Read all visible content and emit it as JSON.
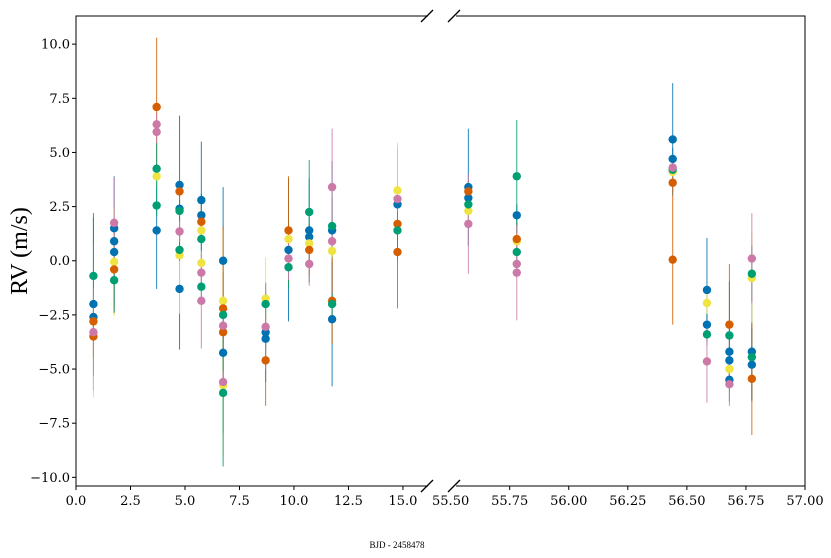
{
  "chart_data": {
    "type": "scatter",
    "title": "",
    "xlabel": "BJD - 2458478",
    "ylabel": "RV (m/s)",
    "broken_x_axis": true,
    "grid": false,
    "legend": "none",
    "panels": [
      {
        "xlim": [
          0.0,
          16.7
        ],
        "xticks": [
          0.0,
          2.5,
          5.0,
          7.5,
          10.0,
          12.5,
          15.0
        ],
        "xtick_labels": [
          "0.0",
          "2.5",
          "5.0",
          "7.5",
          "10.0",
          "12.5",
          "15.0"
        ]
      },
      {
        "xlim": [
          55.455,
          57.0
        ],
        "xticks": [
          55.5,
          55.75,
          56.0,
          56.25,
          56.5,
          56.75,
          57.0
        ],
        "xtick_labels": [
          "55.50",
          "55.75",
          "56.00",
          "56.25",
          "56.50",
          "56.75",
          "57.00"
        ]
      }
    ],
    "ylim": [
      -10.4,
      11.3
    ],
    "yticks": [
      -10.0,
      -7.5,
      -5.0,
      -2.5,
      0.0,
      2.5,
      5.0,
      7.5,
      10.0
    ],
    "ytick_labels": [
      "−10.0",
      "−7.5",
      "−5.0",
      "−2.5",
      "0.0",
      "2.5",
      "5.0",
      "7.5",
      "10.0"
    ],
    "colors": {
      "orange": "#d55e00",
      "blue": "#0072b2",
      "green": "#009e73",
      "pink": "#cc79a7",
      "yellow": "#f0e442"
    },
    "series": [
      {
        "color": "blue",
        "x": [
          0.8,
          0.8,
          1.75,
          1.75,
          1.75,
          3.7,
          4.75,
          4.75,
          4.75,
          5.75,
          5.75,
          6.75,
          6.75,
          8.7,
          8.7,
          9.75,
          10.7,
          10.7,
          11.75,
          11.75,
          14.75,
          55.575,
          55.575,
          55.78,
          56.44,
          56.44,
          56.585,
          56.585,
          56.68,
          56.68,
          56.68,
          56.775,
          56.775
        ],
        "y": [
          -2.0,
          -2.6,
          0.9,
          0.4,
          1.5,
          1.4,
          3.5,
          2.4,
          -1.3,
          2.8,
          2.1,
          0.0,
          -4.25,
          -3.3,
          -3.6,
          0.5,
          1.4,
          1.1,
          1.4,
          -2.7,
          2.6,
          3.4,
          2.9,
          2.1,
          5.6,
          4.7,
          -1.35,
          -2.95,
          -4.2,
          -4.6,
          -5.5,
          -4.2,
          -4.8
        ],
        "yerr": [
          4.0,
          0.5,
          3.0,
          0.5,
          0.5,
          2.7,
          3.2,
          1.0,
          2.8,
          2.7,
          1.0,
          3.4,
          3.7,
          2.3,
          0.5,
          3.3,
          2.4,
          0.5,
          3.2,
          3.1,
          2.6,
          2.7,
          0.5,
          0.5,
          2.6,
          0.5,
          2.4,
          0.5,
          1.2,
          0.5,
          1.0,
          2.2,
          1.7
        ]
      },
      {
        "color": "orange",
        "x": [
          0.8,
          0.8,
          1.75,
          3.7,
          4.75,
          5.75,
          6.75,
          6.75,
          8.7,
          9.75,
          10.7,
          11.75,
          14.75,
          14.75,
          55.575,
          55.78,
          56.44,
          56.44,
          56.68,
          56.775
        ],
        "y": [
          -3.5,
          -2.8,
          -0.4,
          7.1,
          3.2,
          1.8,
          -2.2,
          -3.3,
          -4.6,
          1.4,
          0.5,
          -1.85,
          0.4,
          1.7,
          3.2,
          1.0,
          0.05,
          3.6,
          -2.95,
          -5.45
        ],
        "yerr": [
          1.0,
          0.5,
          2.0,
          3.2,
          2.5,
          0.8,
          3.8,
          1.0,
          2.1,
          2.5,
          1.2,
          2.0,
          2.6,
          0.5,
          0.5,
          0.8,
          3.0,
          0.5,
          2.8,
          2.6
        ]
      },
      {
        "color": "green",
        "x": [
          0.8,
          1.75,
          3.7,
          3.7,
          4.75,
          4.75,
          5.75,
          5.75,
          6.75,
          6.75,
          8.7,
          9.75,
          10.7,
          11.75,
          11.75,
          14.75,
          55.575,
          55.78,
          55.78,
          56.44,
          56.585,
          56.68,
          56.775,
          56.775
        ],
        "y": [
          -0.7,
          -0.9,
          4.25,
          2.55,
          0.5,
          2.3,
          1.0,
          -1.2,
          -6.1,
          -2.5,
          -2.0,
          -0.3,
          2.25,
          1.6,
          -2.0,
          1.4,
          2.6,
          3.9,
          0.4,
          4.2,
          -3.4,
          -3.45,
          -0.6,
          -4.45
        ],
        "yerr": [
          2.9,
          1.5,
          1.2,
          0.5,
          0.5,
          0.5,
          0.5,
          0.5,
          3.4,
          0.5,
          0.5,
          1.0,
          2.4,
          1.3,
          0.5,
          0.5,
          0.5,
          2.6,
          0.5,
          0.5,
          0.5,
          2.5,
          1.3,
          0.5
        ]
      },
      {
        "color": "pink",
        "x": [
          0.8,
          1.75,
          3.7,
          3.7,
          4.75,
          5.75,
          5.75,
          6.75,
          6.75,
          8.7,
          9.75,
          10.7,
          11.75,
          11.75,
          14.75,
          55.575,
          55.78,
          55.78,
          56.44,
          56.585,
          56.68,
          56.775
        ],
        "y": [
          -3.3,
          1.75,
          6.3,
          5.95,
          1.35,
          -0.55,
          -1.85,
          -3.0,
          -5.6,
          -3.05,
          0.1,
          -0.15,
          3.4,
          0.9,
          2.85,
          1.7,
          -0.55,
          -0.15,
          4.3,
          -4.65,
          -5.7,
          0.1
        ],
        "yerr": [
          2.0,
          2.1,
          0.5,
          0.5,
          0.5,
          0.5,
          2.2,
          0.5,
          0.5,
          2.0,
          1.0,
          1.0,
          2.7,
          0.5,
          0.5,
          2.3,
          2.2,
          0.5,
          0.5,
          1.9,
          1.0,
          2.1
        ]
      },
      {
        "color": "yellow",
        "x": [
          0.8,
          1.75,
          3.7,
          4.75,
          5.75,
          5.75,
          6.75,
          6.75,
          8.7,
          9.75,
          10.7,
          11.75,
          14.75,
          55.575,
          55.78,
          56.44,
          56.585,
          56.68,
          56.775
        ],
        "y": [
          -2.8,
          -0.05,
          3.9,
          0.25,
          1.4,
          -0.1,
          -1.85,
          -5.75,
          -1.75,
          1.0,
          0.8,
          0.45,
          3.25,
          2.3,
          0.9,
          4.1,
          -1.95,
          -5.0,
          -0.8
        ],
        "yerr": [
          3.5,
          2.5,
          0.5,
          2.7,
          0.5,
          0.5,
          3.3,
          3.3,
          1.9,
          0.5,
          0.5,
          0.5,
          2.2,
          0.5,
          0.5,
          0.5,
          0.5,
          0.5,
          2.1
        ]
      }
    ]
  }
}
